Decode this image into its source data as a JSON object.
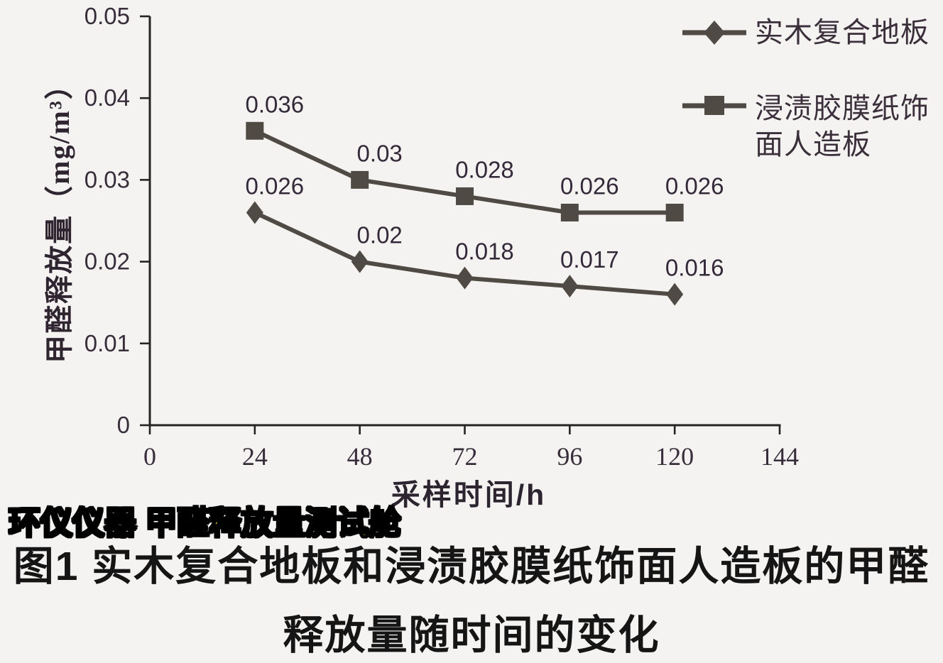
{
  "background_color": "#f5f3f1",
  "watermark": {
    "text": "环仪仪器 甲醛释放量测试舱",
    "fill_color": "#ffe100",
    "outline_color": "#000000"
  },
  "caption": {
    "line1": "图1 实木复合地板和浸渍胶膜纸饰面人造板的甲醛",
    "line2": "释放量随时间的变化"
  },
  "legend": {
    "position": "top-right",
    "items": [
      {
        "marker": "diamond",
        "lines": [
          "实木复合地板"
        ]
      },
      {
        "marker": "square",
        "lines": [
          "浸渍胶膜纸饰",
          "面人造板"
        ]
      }
    ]
  },
  "chart_data": {
    "type": "line",
    "title": "",
    "xlabel": "采样时间/h",
    "ylabel": "甲醛释放量（mg/m³）",
    "x": [
      24,
      48,
      72,
      96,
      120
    ],
    "series": [
      {
        "name": "实木复合地板",
        "marker": "diamond",
        "values": [
          0.026,
          0.02,
          0.018,
          0.017,
          0.016
        ]
      },
      {
        "name": "浸渍胶膜纸饰面人造板",
        "marker": "square",
        "values": [
          0.036,
          0.03,
          0.028,
          0.026,
          0.026
        ]
      }
    ],
    "xlim": [
      0,
      144
    ],
    "ylim": [
      0,
      0.05
    ],
    "x_ticks": [
      0,
      24,
      48,
      72,
      96,
      120,
      144
    ],
    "y_ticks": [
      0,
      0.01,
      0.02,
      0.03,
      0.04,
      0.05
    ],
    "grid": false,
    "legend_position": "top-right",
    "line_color": "#4f4a44",
    "axis_color": "#242424",
    "tick_label_color": "#372d3b",
    "data_label_color": "#342939"
  }
}
